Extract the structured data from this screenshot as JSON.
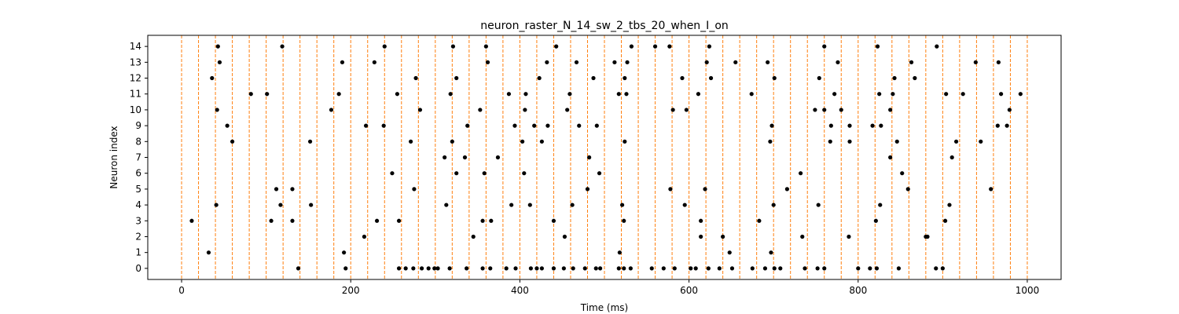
{
  "chart_data": {
    "type": "scatter",
    "title": "neuron_raster_N_14_sw_2_tbs_20_when_I_on",
    "xlabel": "Time (ms)",
    "ylabel": "Neuron index",
    "xlim": [
      -40,
      1040
    ],
    "ylim": [
      -0.7,
      14.7
    ],
    "xticks": [
      0,
      200,
      400,
      600,
      800,
      1000
    ],
    "yticks": [
      0,
      1,
      2,
      3,
      4,
      5,
      6,
      7,
      8,
      9,
      10,
      11,
      12,
      13,
      14
    ],
    "grid": false,
    "marker_color": "#000000",
    "vline_color": "#ff7f0e",
    "vlines": [
      0,
      20,
      40,
      60,
      80,
      100,
      120,
      140,
      160,
      180,
      200,
      220,
      240,
      260,
      280,
      300,
      320,
      340,
      360,
      380,
      400,
      420,
      440,
      460,
      480,
      500,
      520,
      540,
      560,
      580,
      600,
      620,
      640,
      660,
      680,
      700,
      720,
      740,
      760,
      780,
      800,
      820,
      840,
      860,
      880,
      900,
      920,
      940,
      960,
      980,
      1000
    ],
    "spikes": [
      {
        "neuron": 0,
        "times": [
          138,
          194,
          257,
          265,
          274,
          284,
          292,
          299,
          303,
          317,
          337,
          356,
          365,
          384,
          395,
          413,
          420,
          426,
          440,
          452,
          463,
          477,
          490,
          495,
          517,
          523,
          531,
          556,
          570,
          583,
          602,
          608,
          623,
          636,
          651,
          675,
          690,
          701,
          708,
          737,
          752,
          760,
          800,
          814,
          822,
          848,
          892,
          900
        ]
      },
      {
        "neuron": 1,
        "times": [
          32,
          192,
          518,
          648,
          697
        ]
      },
      {
        "neuron": 2,
        "times": [
          216,
          345,
          453,
          614,
          640,
          734,
          789,
          880,
          882
        ]
      },
      {
        "neuron": 3,
        "times": [
          12,
          106,
          131,
          231,
          257,
          356,
          366,
          440,
          523,
          614,
          683,
          821,
          903
        ]
      },
      {
        "neuron": 4,
        "times": [
          41,
          117,
          153,
          313,
          390,
          412,
          462,
          521,
          595,
          700,
          753,
          826,
          908
        ]
      },
      {
        "neuron": 5,
        "times": [
          112,
          131,
          275,
          480,
          578,
          619,
          716,
          859,
          957
        ]
      },
      {
        "neuron": 6,
        "times": [
          249,
          325,
          358,
          405,
          494,
          732,
          852
        ]
      },
      {
        "neuron": 7,
        "times": [
          311,
          335,
          374,
          482,
          838,
          911
        ]
      },
      {
        "neuron": 8,
        "times": [
          60,
          152,
          271,
          320,
          403,
          426,
          524,
          696,
          767,
          790,
          846,
          916,
          945
        ]
      },
      {
        "neuron": 9,
        "times": [
          54,
          218,
          239,
          338,
          394,
          417,
          433,
          470,
          491,
          698,
          768,
          790,
          817,
          827,
          965,
          976
        ]
      },
      {
        "neuron": 10,
        "times": [
          42,
          177,
          282,
          353,
          406,
          456,
          581,
          597,
          749,
          760,
          780,
          838,
          979
        ]
      },
      {
        "neuron": 11,
        "times": [
          82,
          101,
          186,
          255,
          318,
          387,
          407,
          459,
          517,
          526,
          611,
          674,
          772,
          825,
          841,
          904,
          924,
          969,
          992
        ]
      },
      {
        "neuron": 12,
        "times": [
          36,
          277,
          325,
          423,
          487,
          524,
          592,
          626,
          701,
          754,
          843,
          867
        ]
      },
      {
        "neuron": 13,
        "times": [
          45,
          190,
          228,
          362,
          432,
          467,
          512,
          527,
          621,
          655,
          693,
          776,
          863,
          939,
          966
        ]
      },
      {
        "neuron": 14,
        "times": [
          43,
          119,
          240,
          321,
          360,
          443,
          532,
          560,
          577,
          624,
          760,
          823,
          893
        ]
      }
    ]
  }
}
